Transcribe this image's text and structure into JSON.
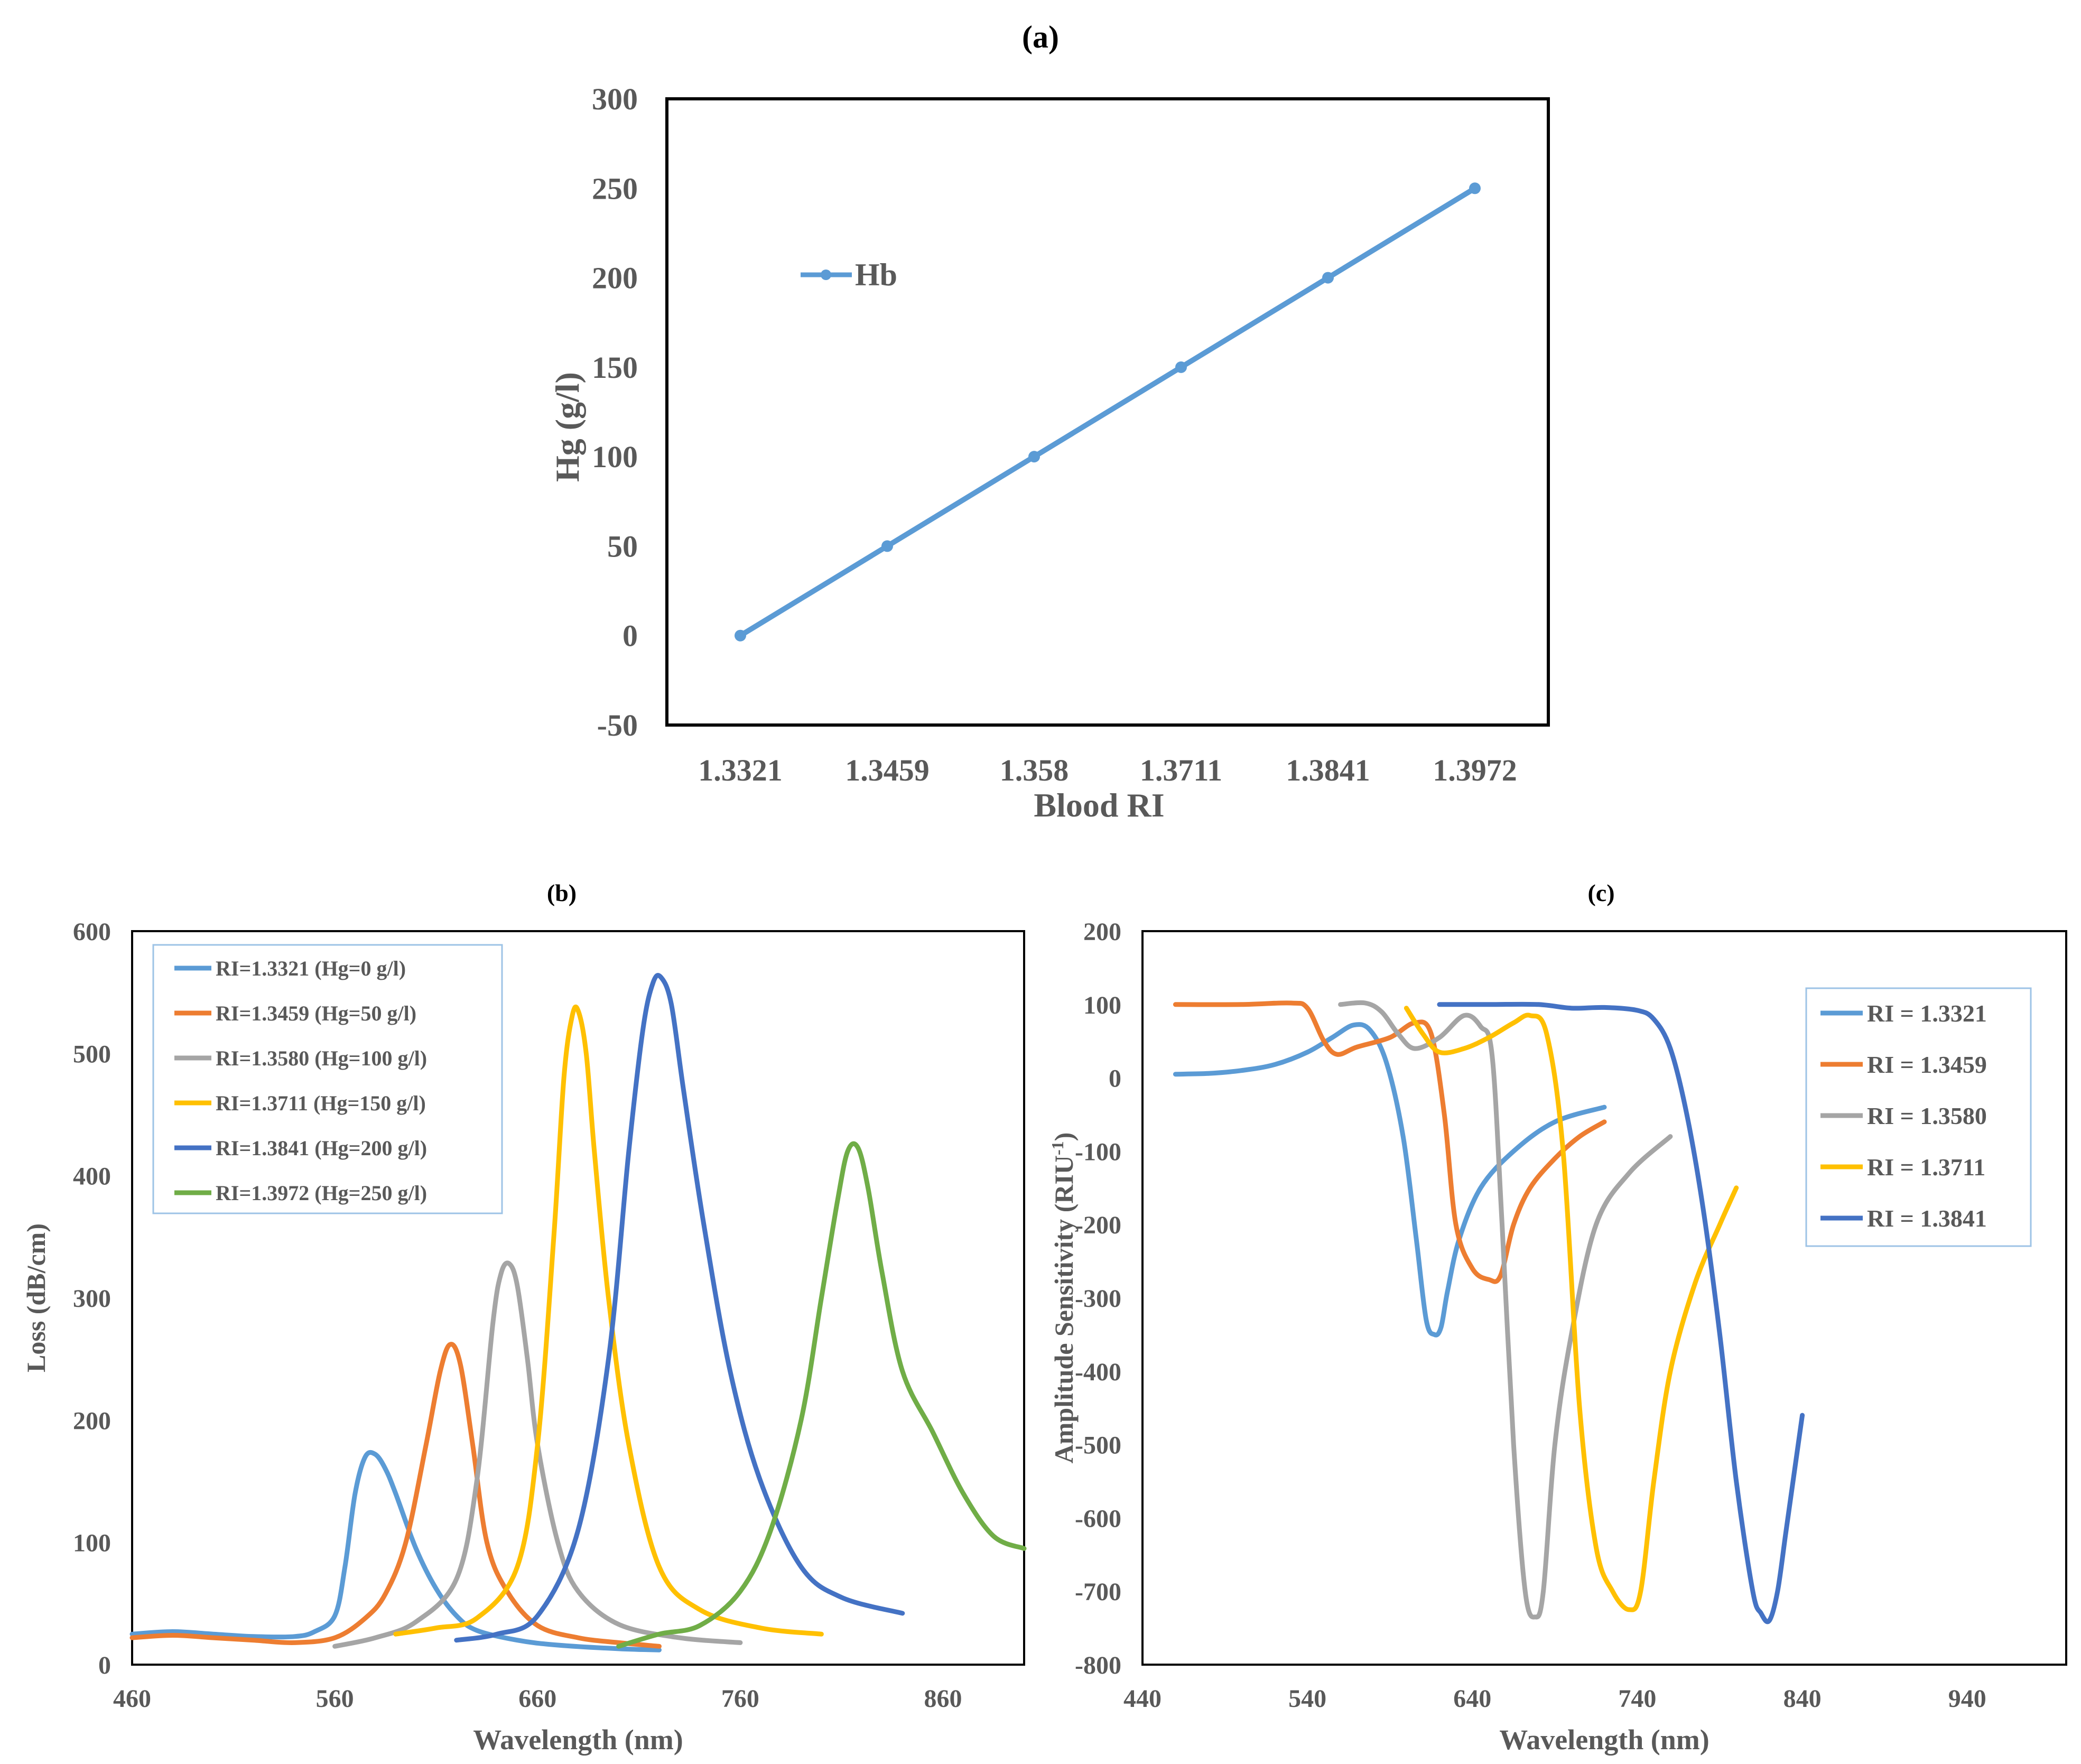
{
  "chart_data": [
    {
      "id": "a",
      "type": "line",
      "panel_label": "(a)",
      "title": "",
      "xlabel": "Blood RI",
      "ylabel": "Hg (g/l)",
      "categories": [
        "1.3321",
        "1.3459",
        "1.358",
        "1.3711",
        "1.3841",
        "1.3972"
      ],
      "ylim": [
        -50,
        300
      ],
      "yticks": [
        "-50",
        "0",
        "50",
        "100",
        "150",
        "200",
        "250",
        "300"
      ],
      "series": [
        {
          "name": "Hb",
          "color": "#5b9bd5",
          "values": [
            0,
            50,
            100,
            150,
            200,
            250
          ]
        }
      ],
      "legend": "inside-left"
    },
    {
      "id": "b",
      "type": "line",
      "panel_label": "(b)",
      "title": "",
      "xlabel": "Wavelength (nm)",
      "ylabel": "Loss (dB/cm)",
      "xlim": [
        460,
        900
      ],
      "ylim": [
        0,
        600
      ],
      "xticks": [
        "460",
        "560",
        "660",
        "760",
        "860"
      ],
      "yticks": [
        "0",
        "100",
        "200",
        "300",
        "400",
        "500",
        "600"
      ],
      "legend": "top-left",
      "series": [
        {
          "name": "RI=1.3321 (Hg=0 g/l)",
          "color": "#5b9bd5",
          "x": [
            460,
            480,
            500,
            520,
            540,
            550,
            560,
            565,
            570,
            575,
            580,
            585,
            590,
            600,
            610,
            620,
            630,
            650,
            670,
            700,
            720
          ],
          "y": [
            25,
            27,
            25,
            23,
            23,
            27,
            40,
            80,
            140,
            170,
            172,
            160,
            140,
            95,
            62,
            40,
            28,
            20,
            16,
            13,
            12
          ]
        },
        {
          "name": "RI=1.3459 (Hg=50 g/l)",
          "color": "#ed7d31",
          "x": [
            460,
            480,
            500,
            520,
            540,
            560,
            575,
            585,
            595,
            605,
            612,
            617,
            622,
            628,
            635,
            645,
            660,
            680,
            700,
            720
          ],
          "y": [
            22,
            24,
            22,
            20,
            18,
            22,
            38,
            58,
            100,
            180,
            240,
            262,
            245,
            180,
            100,
            60,
            32,
            22,
            18,
            15
          ]
        },
        {
          "name": "RI=1.3580 (Hg=100 g/l)",
          "color": "#a5a5a5",
          "x": [
            560,
            580,
            600,
            620,
            630,
            638,
            642,
            646,
            650,
            655,
            660,
            670,
            680,
            700,
            730,
            760
          ],
          "y": [
            15,
            22,
            35,
            70,
            150,
            280,
            320,
            328,
            310,
            250,
            180,
            100,
            60,
            33,
            22,
            18
          ]
        },
        {
          "name": "RI=1.3711 (Hg=150 g/l)",
          "color": "#ffc000",
          "x": [
            590,
            610,
            630,
            650,
            660,
            668,
            673,
            677,
            680,
            684,
            688,
            695,
            705,
            720,
            740,
            770,
            800
          ],
          "y": [
            25,
            30,
            38,
            80,
            180,
            350,
            480,
            530,
            535,
            500,
            420,
            300,
            180,
            80,
            45,
            30,
            25
          ]
        },
        {
          "name": "RI=1.3841 (Hg=200 g/l)",
          "color": "#4472c4",
          "x": [
            620,
            640,
            660,
            680,
            695,
            705,
            712,
            717,
            721,
            726,
            732,
            742,
            755,
            770,
            790,
            810,
            840
          ],
          "y": [
            20,
            25,
            40,
            110,
            250,
            420,
            520,
            558,
            562,
            540,
            470,
            360,
            240,
            150,
            80,
            55,
            42
          ]
        },
        {
          "name": "RI=1.3972 (Hg=250 g/l)",
          "color": "#70ad47",
          "x": [
            700,
            720,
            740,
            760,
            775,
            790,
            800,
            808,
            813,
            818,
            823,
            830,
            840,
            855,
            870,
            885,
            900
          ],
          "y": [
            15,
            25,
            32,
            60,
            110,
            200,
            300,
            380,
            420,
            423,
            390,
            320,
            240,
            190,
            140,
            105,
            95
          ]
        }
      ]
    },
    {
      "id": "c",
      "type": "line",
      "panel_label": "(c)",
      "title": "",
      "xlabel": "Wavelength (nm)",
      "ylabel": "Amplitude Sensitivity (RIU",
      "ylabel_sup": "-1",
      "ylabel_end": ")",
      "xlim": [
        440,
        1000
      ],
      "ylim": [
        -800,
        200
      ],
      "xticks": [
        "440",
        "540",
        "640",
        "740",
        "840",
        "940"
      ],
      "yticks": [
        "-800",
        "-700",
        "-600",
        "-500",
        "-400",
        "-300",
        "-200",
        "-100",
        "0",
        "100",
        "200"
      ],
      "legend": "right",
      "series": [
        {
          "name": "RI = 1.3321",
          "color": "#5b9bd5",
          "x": [
            460,
            480,
            500,
            520,
            540,
            555,
            568,
            578,
            588,
            598,
            606,
            612,
            617,
            621,
            625,
            632,
            645,
            665,
            690,
            720
          ],
          "y": [
            5,
            6,
            10,
            18,
            35,
            55,
            72,
            65,
            20,
            -80,
            -220,
            -330,
            -350,
            -340,
            -290,
            -220,
            -150,
            -100,
            -60,
            -40
          ]
        },
        {
          "name": "RI = 1.3459",
          "color": "#ed7d31",
          "x": [
            460,
            500,
            530,
            540,
            550,
            558,
            570,
            590,
            605,
            615,
            623,
            630,
            640,
            650,
            657,
            665,
            675,
            690,
            705,
            720
          ],
          "y": [
            100,
            100,
            102,
            95,
            50,
            32,
            42,
            55,
            75,
            60,
            -50,
            -200,
            -260,
            -275,
            -270,
            -200,
            -150,
            -110,
            -80,
            -60
          ]
        },
        {
          "name": "RI = 1.3580",
          "color": "#a5a5a5",
          "x": [
            560,
            575,
            585,
            595,
            605,
            620,
            635,
            645,
            652,
            658,
            665,
            672,
            678,
            683,
            690,
            700,
            715,
            735,
            760
          ],
          "y": [
            100,
            102,
            90,
            60,
            40,
            55,
            85,
            70,
            30,
            -200,
            -500,
            -700,
            -735,
            -700,
            -500,
            -350,
            -200,
            -130,
            -80
          ]
        },
        {
          "name": "RI = 1.3711",
          "color": "#ffc000",
          "x": [
            600,
            610,
            620,
            635,
            650,
            665,
            675,
            685,
            695,
            705,
            715,
            725,
            735,
            742,
            750,
            760,
            775,
            790,
            800
          ],
          "y": [
            95,
            60,
            35,
            40,
            55,
            75,
            85,
            60,
            -100,
            -450,
            -640,
            -700,
            -725,
            -700,
            -550,
            -400,
            -280,
            -200,
            -150
          ]
        },
        {
          "name": "RI = 1.3841",
          "color": "#4472c4",
          "x": [
            620,
            650,
            680,
            700,
            720,
            740,
            750,
            760,
            770,
            780,
            790,
            800,
            810,
            815,
            820,
            825,
            830,
            835,
            840
          ],
          "y": [
            100,
            100,
            100,
            95,
            96,
            92,
            80,
            40,
            -50,
            -180,
            -350,
            -550,
            -700,
            -730,
            -740,
            -700,
            -620,
            -540,
            -460
          ]
        }
      ]
    }
  ]
}
